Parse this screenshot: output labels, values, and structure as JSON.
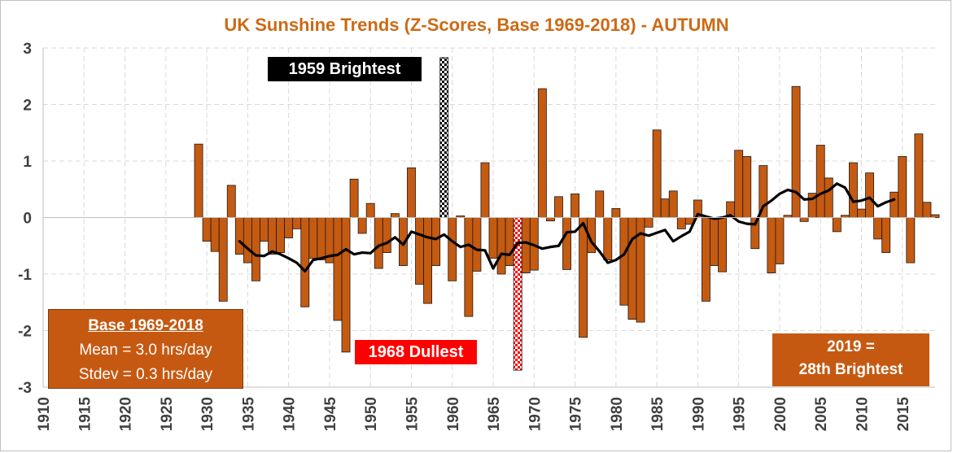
{
  "chart_data": {
    "type": "bar",
    "title": "UK Sunshine Trends (Z-Scores, Base 1969-2018) - AUTUMN",
    "xlabel": "",
    "ylabel": "",
    "ylim": [
      -3,
      3
    ],
    "xlim": [
      1910,
      2019
    ],
    "y_ticks": [
      "3",
      "2",
      "1",
      "0",
      "-1",
      "-2",
      "-3"
    ],
    "x_ticks": [
      "1910",
      "1915",
      "1920",
      "1925",
      "1930",
      "1935",
      "1940",
      "1945",
      "1950",
      "1955",
      "1960",
      "1965",
      "1970",
      "1975",
      "1980",
      "1985",
      "1990",
      "1995",
      "2000",
      "2005",
      "2010",
      "2015"
    ],
    "grid": "dashed vertical and horizontal",
    "colors": {
      "bar": "#c55a11",
      "bar_edge": "#1a1a1a",
      "trend": "#000000",
      "title": "#cc6a14",
      "highlight_brightest": "#000000",
      "highlight_dullest": "#ff0000"
    },
    "series": [
      {
        "kind": "bar",
        "years": [
          1929,
          1930,
          1931,
          1932,
          1933,
          1934,
          1935,
          1936,
          1937,
          1938,
          1939,
          1940,
          1941,
          1942,
          1943,
          1944,
          1945,
          1946,
          1947,
          1948,
          1949,
          1950,
          1951,
          1952,
          1953,
          1954,
          1955,
          1956,
          1957,
          1958,
          1959,
          1960,
          1961,
          1962,
          1963,
          1964,
          1965,
          1966,
          1967,
          1968,
          1969,
          1970,
          1971,
          1972,
          1973,
          1974,
          1975,
          1976,
          1977,
          1978,
          1979,
          1980,
          1981,
          1982,
          1983,
          1984,
          1985,
          1986,
          1987,
          1988,
          1989,
          1990,
          1991,
          1992,
          1993,
          1994,
          1995,
          1996,
          1997,
          1998,
          1999,
          2000,
          2001,
          2002,
          2003,
          2004,
          2005,
          2006,
          2007,
          2008,
          2009,
          2010,
          2011,
          2012,
          2013,
          2014,
          2015,
          2016,
          2017,
          2018,
          2019
        ],
        "values": [
          1.3,
          -0.42,
          -0.6,
          -1.48,
          0.57,
          -0.65,
          -0.8,
          -1.12,
          -0.42,
          -0.65,
          -0.62,
          -0.36,
          -0.2,
          -1.58,
          -0.72,
          -0.75,
          -0.8,
          -1.82,
          -2.38,
          0.68,
          -0.28,
          0.25,
          -0.9,
          -0.62,
          0.07,
          -0.85,
          0.88,
          -1.18,
          -1.52,
          -0.85,
          2.83,
          -1.12,
          0.03,
          -1.75,
          -0.95,
          0.97,
          -0.72,
          -1.0,
          -0.85,
          -2.7,
          -0.98,
          -0.93,
          2.28,
          -0.06,
          0.37,
          -0.92,
          0.42,
          -2.12,
          -0.62,
          0.47,
          -0.75,
          0.16,
          -1.55,
          -1.8,
          -1.85,
          -0.17,
          1.55,
          0.33,
          0.47,
          -0.2,
          -0.12,
          0.31,
          -1.48,
          -0.85,
          -0.96,
          0.28,
          1.19,
          1.08,
          -0.55,
          0.92,
          -0.98,
          -0.82,
          0.04,
          2.32,
          -0.07,
          0.43,
          1.28,
          0.7,
          -0.25,
          0.04,
          0.97,
          0.15,
          0.79,
          -0.38,
          -0.62,
          0.45,
          1.08,
          -0.8,
          1.48,
          0.27,
          0.05
        ]
      },
      {
        "kind": "line",
        "name": "",
        "years": [
          1934,
          1935,
          1936,
          1937,
          1938,
          1939,
          1940,
          1941,
          1942,
          1943,
          1944,
          1945,
          1946,
          1947,
          1948,
          1949,
          1950,
          1951,
          1952,
          1953,
          1954,
          1955,
          1956,
          1957,
          1958,
          1959,
          1960,
          1961,
          1962,
          1963,
          1964,
          1965,
          1966,
          1967,
          1968,
          1969,
          1970,
          1971,
          1972,
          1973,
          1974,
          1975,
          1976,
          1977,
          1978,
          1979,
          1980,
          1981,
          1982,
          1983,
          1984,
          1985,
          1986,
          1987,
          1988,
          1989,
          1990,
          1991,
          1992,
          1993,
          1994,
          1995,
          1996,
          1997,
          1998,
          1999,
          2000,
          2001,
          2002,
          2003,
          2004,
          2005,
          2006,
          2007,
          2008,
          2009,
          2010,
          2011,
          2012,
          2013,
          2014
        ],
        "values": [
          -0.42,
          -0.55,
          -0.67,
          -0.68,
          -0.6,
          -0.65,
          -0.72,
          -0.8,
          -0.95,
          -0.75,
          -0.72,
          -0.68,
          -0.66,
          -0.56,
          -0.65,
          -0.62,
          -0.63,
          -0.5,
          -0.45,
          -0.35,
          -0.48,
          -0.25,
          -0.3,
          -0.35,
          -0.38,
          -0.3,
          -0.42,
          -0.52,
          -0.48,
          -0.57,
          -0.58,
          -0.9,
          -0.64,
          -0.66,
          -0.45,
          -0.44,
          -0.49,
          -0.55,
          -0.52,
          -0.5,
          -0.26,
          -0.25,
          -0.1,
          -0.43,
          -0.6,
          -0.8,
          -0.75,
          -0.65,
          -0.38,
          -0.28,
          -0.32,
          -0.27,
          -0.22,
          -0.42,
          -0.33,
          -0.25,
          0.06,
          0.02,
          -0.02,
          0.0,
          0.04,
          -0.07,
          -0.11,
          -0.12,
          0.2,
          0.3,
          0.42,
          0.49,
          0.45,
          0.32,
          0.33,
          0.42,
          0.48,
          0.6,
          0.53,
          0.28,
          0.3,
          0.35,
          0.2,
          0.27,
          0.32
        ]
      }
    ],
    "highlights": {
      "brightest_year": 1959,
      "dullest_year": 1968
    },
    "labels": {
      "brightest": "1959 Brightest",
      "dullest": "1968 Dullest"
    },
    "base_box": {
      "title": "Base 1969-2018",
      "mean": "Mean = 3.0 hrs/day",
      "stdev": "Stdev = 0.3 hrs/day"
    },
    "note_box": {
      "line1": "2019 =",
      "line2": "28th Brightest"
    }
  }
}
